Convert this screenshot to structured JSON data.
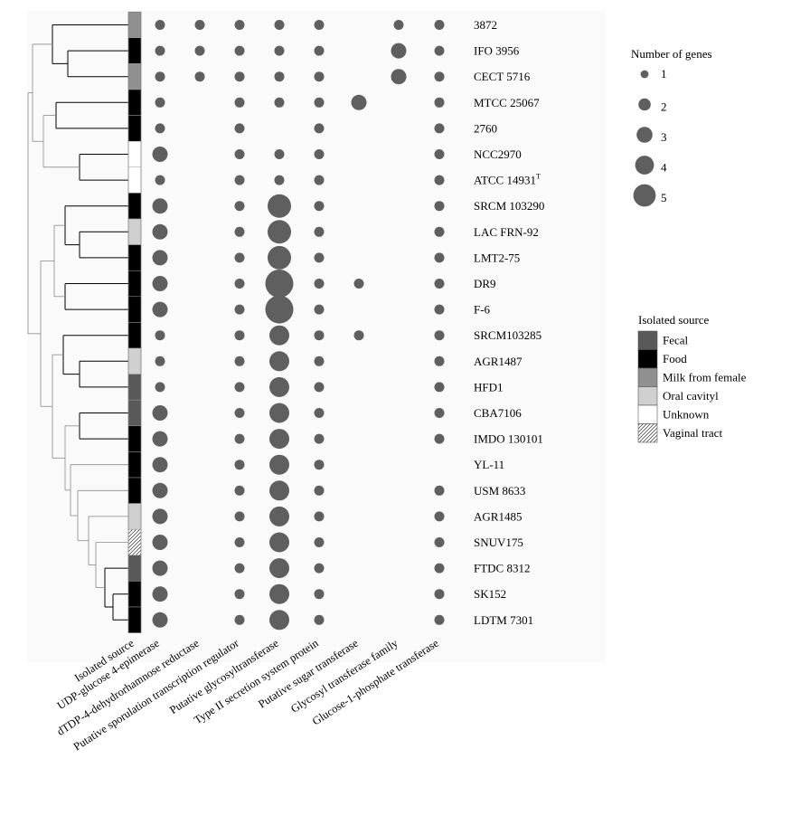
{
  "chart_data": {
    "type": "dot-matrix",
    "strains": [
      "3872",
      "IFO 3956",
      "CECT 5716",
      "MTCC 25067",
      "2760",
      "NCC2970",
      "ATCC 14931",
      "SRCM 103290",
      "LAC FRN-92",
      "LMT2-75",
      "DR9",
      "F-6",
      "SRCM103285",
      "AGR1487",
      "HFD1",
      "CBA7106",
      "IMDO 130101",
      "YL-11",
      "USM 8633",
      "AGR1485",
      "SNUV175",
      "FTDC 8312",
      "SK152",
      "LDTM 7301"
    ],
    "type_strain_superscript": "T",
    "columns": [
      "Isolated source",
      "UDP-glucose 4-epimerase",
      "dTDP-4-dehydrorhamnose reductase",
      "Putative sporulation transcription regulator",
      "Putative glycosyltransferase",
      "Type II secretion system protein",
      "Putative sugar transferase",
      "Glycosyl transferase family",
      "Glucose-1-phosphate transferase"
    ],
    "isolated_source": [
      "Milk from female",
      "Food",
      "Milk from female",
      "Food",
      "Food",
      "Unknown",
      "Unknown",
      "Food",
      "Oral cavityl",
      "Food",
      "Food",
      "Food",
      "Food",
      "Oral cavityl",
      "Fecal",
      "Fecal",
      "Food",
      "Food",
      "Food",
      "Oral cavityl",
      "Vaginal tract",
      "Fecal",
      "Food",
      "Food"
    ],
    "gene_counts": [
      [
        1,
        1,
        1,
        1,
        1,
        0,
        1,
        1
      ],
      [
        1,
        1,
        1,
        1,
        1,
        0,
        2,
        1
      ],
      [
        1,
        1,
        1,
        1,
        1,
        0,
        2,
        1
      ],
      [
        1,
        0,
        1,
        1,
        1,
        2,
        0,
        1
      ],
      [
        1,
        0,
        1,
        0,
        1,
        0,
        0,
        1
      ],
      [
        2,
        0,
        1,
        1,
        1,
        0,
        0,
        1
      ],
      [
        1,
        0,
        1,
        1,
        1,
        0,
        0,
        1
      ],
      [
        2,
        0,
        1,
        4,
        1,
        0,
        0,
        1
      ],
      [
        2,
        0,
        1,
        4,
        1,
        0,
        0,
        1
      ],
      [
        2,
        0,
        1,
        4,
        1,
        0,
        0,
        1
      ],
      [
        2,
        0,
        1,
        5,
        1,
        1,
        0,
        1
      ],
      [
        2,
        0,
        1,
        5,
        1,
        0,
        0,
        1
      ],
      [
        1,
        0,
        1,
        3,
        1,
        1,
        0,
        1
      ],
      [
        1,
        0,
        1,
        3,
        1,
        0,
        0,
        1
      ],
      [
        1,
        0,
        1,
        3,
        1,
        0,
        0,
        1
      ],
      [
        2,
        0,
        1,
        3,
        1,
        0,
        0,
        1
      ],
      [
        2,
        0,
        1,
        3,
        1,
        0,
        0,
        1
      ],
      [
        2,
        0,
        1,
        3,
        1,
        0,
        0,
        0
      ],
      [
        2,
        0,
        1,
        3,
        1,
        0,
        0,
        1
      ],
      [
        2,
        0,
        1,
        3,
        1,
        0,
        0,
        1
      ],
      [
        2,
        0,
        1,
        3,
        1,
        0,
        0,
        1
      ],
      [
        2,
        0,
        1,
        3,
        1,
        0,
        0,
        1
      ],
      [
        2,
        0,
        1,
        3,
        1,
        0,
        0,
        1
      ],
      [
        2,
        0,
        1,
        3,
        1,
        0,
        0,
        1
      ]
    ],
    "size_legend": {
      "title": "Number of genes",
      "values": [
        "1",
        "2",
        "3",
        "4",
        "5"
      ]
    },
    "source_legend": {
      "title": "Isolated source",
      "items": [
        {
          "label": "Fecal",
          "color": "#595959",
          "pattern": false
        },
        {
          "label": "Food",
          "color": "#000000",
          "pattern": false
        },
        {
          "label": "Milk from female",
          "color": "#909090",
          "pattern": false
        },
        {
          "label": "Oral cavityl",
          "color": "#d0d0d0",
          "pattern": false
        },
        {
          "label": "Unknown",
          "color": "#ffffff",
          "pattern": false
        },
        {
          "label": "Vaginal tract",
          "color": "#ffffff",
          "pattern": true
        }
      ]
    },
    "dot_color": "#5f5f5f",
    "legend_placement": "right",
    "dendrogram_placement": "left"
  }
}
